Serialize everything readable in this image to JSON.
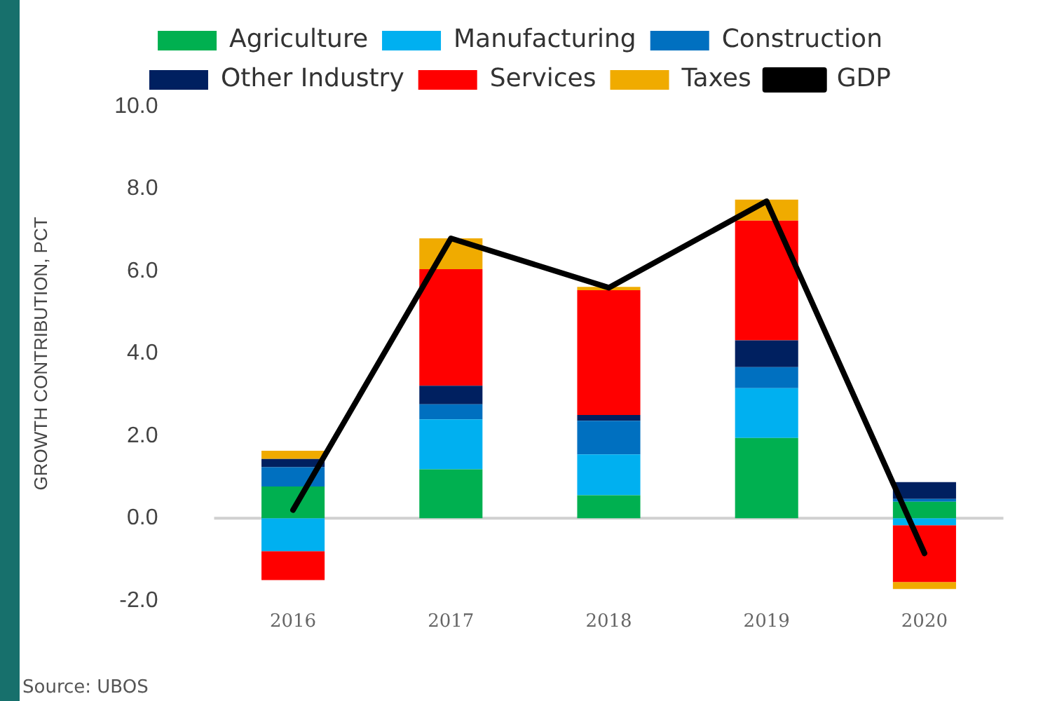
{
  "chart_data": {
    "type": "bar",
    "stacked": true,
    "ylabel": "GROWTH CONTRIBUTION, PCT",
    "categories": [
      "2016",
      "2017",
      "2018",
      "2019",
      "2020"
    ],
    "ylim": [
      -2,
      10
    ],
    "yticks": [
      {
        "value": -2,
        "label": "-2.0"
      },
      {
        "value": 0,
        "label": "0.0"
      },
      {
        "value": 2,
        "label": "2.0"
      },
      {
        "value": 4,
        "label": "4.0"
      },
      {
        "value": 6,
        "label": "6.0"
      },
      {
        "value": 8,
        "label": "8.0"
      },
      {
        "value": 10,
        "label": "10.0"
      }
    ],
    "grid": false,
    "legend": "top",
    "line_style": "solid",
    "marker": "none",
    "series": [
      {
        "name": "Agriculture",
        "color": "#00b050",
        "values": [
          0.77,
          1.19,
          0.56,
          1.95,
          0.4
        ]
      },
      {
        "name": "Manufacturing",
        "color": "#00b0f0",
        "values": [
          -0.8,
          1.21,
          0.99,
          1.21,
          -0.17
        ]
      },
      {
        "name": "Construction",
        "color": "#0070c0",
        "values": [
          0.47,
          0.37,
          0.82,
          0.51,
          0.07
        ]
      },
      {
        "name": "Other Industry",
        "color": "#002060",
        "values": [
          0.2,
          0.45,
          0.14,
          0.65,
          0.41
        ]
      },
      {
        "name": "Services",
        "color": "#ff0000",
        "values": [
          -0.7,
          2.83,
          3.03,
          2.91,
          -1.38
        ]
      },
      {
        "name": "Taxes",
        "color": "#f0ab00",
        "values": [
          0.2,
          0.75,
          0.08,
          0.51,
          -0.17
        ]
      },
      {
        "name": "GDP",
        "type": "line",
        "color": "#000000",
        "values": [
          0.2,
          6.8,
          5.6,
          7.7,
          -0.85
        ]
      }
    ],
    "ref_lines": [
      {
        "axis": "y",
        "value": 0,
        "color": "#d0d0d0",
        "line_style": "solid"
      }
    ],
    "annotations": [
      "Source: UBOS"
    ]
  }
}
